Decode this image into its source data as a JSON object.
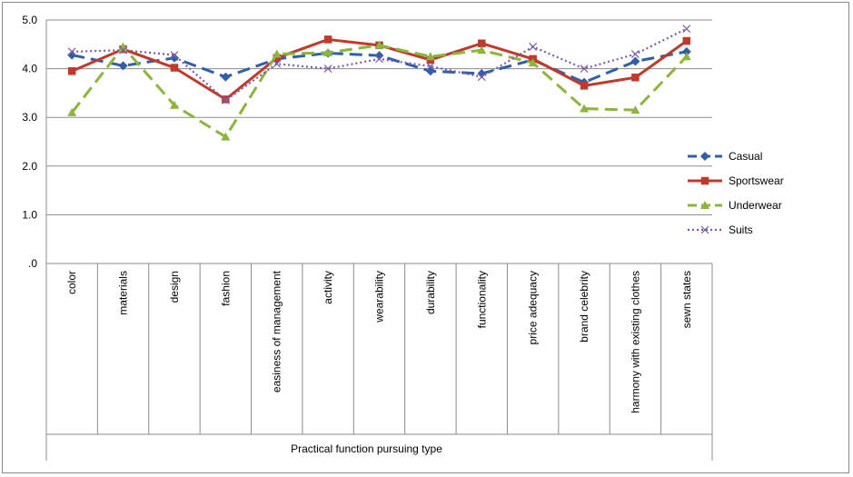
{
  "chart_data": {
    "type": "line",
    "title": "",
    "xlabel": "Practical function pursuing type",
    "ylabel": "",
    "ylim": [
      0,
      5
    ],
    "yticks": [
      0,
      1,
      2,
      3,
      4,
      5
    ],
    "ytick_labels": [
      ".0",
      "1.0",
      "2.0",
      "3.0",
      "4.0",
      "5.0"
    ],
    "grid": "horizontal",
    "legend_position": "right",
    "categories": [
      "color",
      "materials",
      "design",
      "fashion",
      "easiness of management",
      "activity",
      "wearability",
      "durability",
      "functionality",
      "price adequacy",
      "brand celebrity",
      "harmony with existing clothes",
      "sewn states"
    ],
    "series": [
      {
        "name": "Casual",
        "color": "#2e5fa8",
        "marker": "diamond",
        "dash": "long-dash",
        "values": [
          4.28,
          4.06,
          4.22,
          3.83,
          4.2,
          4.32,
          4.27,
          3.95,
          3.9,
          4.18,
          3.72,
          4.15,
          4.35
        ]
      },
      {
        "name": "Sportswear",
        "color": "#c0392b",
        "marker": "square",
        "dash": "solid",
        "values": [
          3.95,
          4.4,
          4.02,
          3.37,
          4.22,
          4.6,
          4.48,
          4.18,
          4.52,
          4.2,
          3.65,
          3.82,
          4.57
        ]
      },
      {
        "name": "Underwear",
        "color": "#8db43c",
        "marker": "triangle",
        "dash": "long-dash",
        "values": [
          3.1,
          4.45,
          3.25,
          2.6,
          4.3,
          4.33,
          4.48,
          4.25,
          4.38,
          4.12,
          3.18,
          3.15,
          4.25
        ]
      },
      {
        "name": "Suits",
        "color": "#7d5ba6",
        "marker": "x",
        "dash": "dotted",
        "values": [
          4.35,
          4.38,
          4.28,
          3.35,
          4.1,
          4.0,
          4.2,
          4.05,
          3.83,
          4.45,
          4.0,
          4.3,
          4.82
        ]
      }
    ]
  }
}
